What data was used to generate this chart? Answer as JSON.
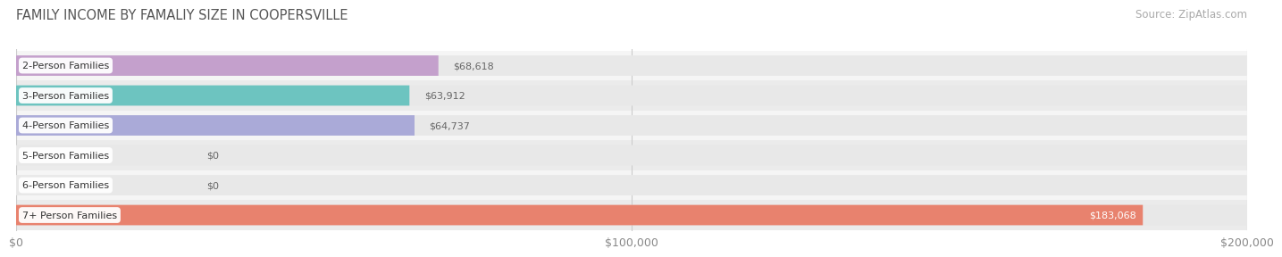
{
  "title": "FAMILY INCOME BY FAMALIY SIZE IN COOPERSVILLE",
  "source": "Source: ZipAtlas.com",
  "categories": [
    "2-Person Families",
    "3-Person Families",
    "4-Person Families",
    "5-Person Families",
    "6-Person Families",
    "7+ Person Families"
  ],
  "values": [
    68618,
    63912,
    64737,
    0,
    0,
    183068
  ],
  "value_labels": [
    "$68,618",
    "$63,912",
    "$64,737",
    "$0",
    "$0",
    "$183,068"
  ],
  "bar_colors": [
    "#c4a0cc",
    "#6dc4c0",
    "#aaaad8",
    "#f5a0b8",
    "#f5c8a0",
    "#e8826e"
  ],
  "row_bg_colors": [
    "#f5f5f5",
    "#ebebeb"
  ],
  "xlim": [
    0,
    200000
  ],
  "xticks": [
    0,
    100000,
    200000
  ],
  "xtick_labels": [
    "$0",
    "$100,000",
    "$200,000"
  ],
  "title_fontsize": 10.5,
  "source_fontsize": 8.5,
  "label_fontsize": 8,
  "value_fontsize": 8,
  "bar_height": 0.68,
  "background_color": "#ffffff",
  "pill_bg_color": "#e8e8e8",
  "value_label_inside_last": true
}
